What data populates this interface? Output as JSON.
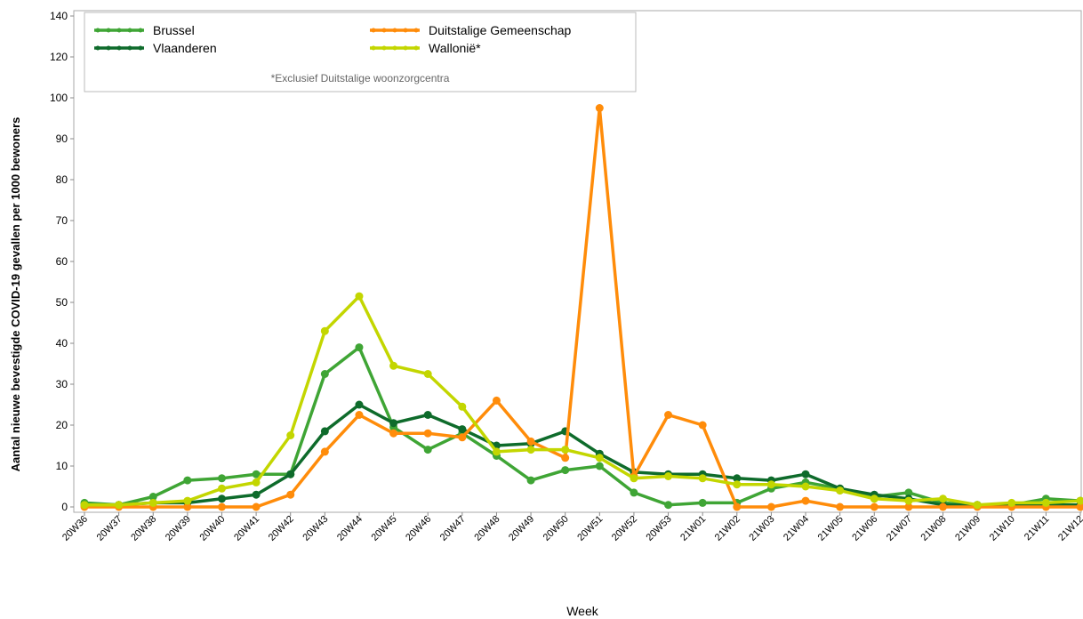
{
  "chart_data": {
    "type": "line",
    "y_label": "Aantal nieuwe bevestigde COVID-19 gevallen per 1000 bewoners",
    "x_label": "Week",
    "legend_note": "*Exclusief Duitstalige woonzorgcentra",
    "categories": [
      "20W36",
      "20W37",
      "20W38",
      "20W39",
      "20W40",
      "20W41",
      "20W42",
      "20W43",
      "20W44",
      "20W45",
      "20W46",
      "20W47",
      "20W48",
      "20W49",
      "20W50",
      "20W51",
      "20W52",
      "20W53",
      "21W01",
      "21W02",
      "21W03",
      "21W04",
      "21W05",
      "21W06",
      "21W07",
      "21W08",
      "21W09",
      "21W10",
      "21W11",
      "21W12"
    ],
    "series": [
      {
        "name": "Brussel",
        "color": "#3fa535",
        "values": [
          1,
          0.5,
          2.5,
          6.5,
          7,
          8,
          8,
          32.5,
          39,
          19.5,
          14,
          18,
          12.5,
          6.5,
          9,
          10,
          3.5,
          0.5,
          1,
          1,
          4.5,
          6,
          4.5,
          2.5,
          3.5,
          1,
          0.5,
          0.5,
          2,
          1.5
        ]
      },
      {
        "name": "Vlaanderen",
        "color": "#0e6b2b",
        "values": [
          0.5,
          0.5,
          1,
          1,
          2,
          3,
          8,
          18.5,
          25,
          20.5,
          22.5,
          19,
          15,
          15.5,
          18.5,
          13,
          8.5,
          8,
          8,
          7,
          6.5,
          8,
          4.5,
          3,
          2,
          0.5,
          0.5,
          0.5,
          0.5,
          0.5
        ]
      },
      {
        "name": "Duitstalige Gemeenschap",
        "color": "#ff8c0a",
        "values": [
          0,
          0,
          0,
          0,
          0,
          0,
          3,
          13.5,
          22.5,
          18,
          18,
          17,
          26,
          16,
          12,
          97.5,
          7.5,
          22.5,
          20,
          0,
          0,
          1.5,
          0,
          0,
          0,
          0,
          0,
          0,
          0,
          0
        ]
      },
      {
        "name": "Wallonië*",
        "color": "#c3d600",
        "values": [
          0.5,
          0.5,
          1,
          1.5,
          4.5,
          6,
          17.5,
          43,
          51.5,
          34.5,
          32.5,
          24.5,
          13.5,
          14,
          14,
          12,
          7,
          7.5,
          7,
          5.5,
          5.5,
          5,
          4,
          2,
          1.5,
          2,
          0.5,
          1,
          1,
          1.5
        ]
      }
    ],
    "ylim": [
      0,
      140
    ],
    "yticks": [
      0,
      10,
      20,
      30,
      40,
      50,
      60,
      70,
      80,
      90,
      100,
      120,
      140
    ]
  }
}
